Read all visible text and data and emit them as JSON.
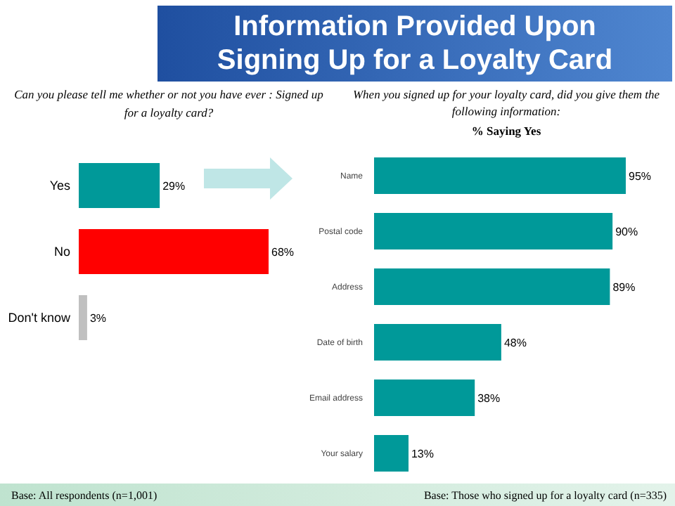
{
  "chart_data": [
    {
      "type": "bar",
      "orientation": "horizontal",
      "title": "Information Provided Upon Signing Up for a Loyalty Card",
      "subtitle": "Can you please tell me whether or not you have ever : Signed up for a loyalty card?",
      "categories": [
        "Yes",
        "No",
        "Don't know"
      ],
      "values": [
        29,
        68,
        3
      ],
      "colors": [
        "#009999",
        "#ff0000",
        "#c0c0c0"
      ],
      "value_labels": [
        "29%",
        "68%",
        "3%"
      ],
      "annotations": [
        "Base: All respondents (n=1,001)"
      ]
    },
    {
      "type": "bar",
      "orientation": "horizontal",
      "title": "When you signed up for your loyalty card, did you give them the following information:",
      "subtitle": "% Saying Yes",
      "categories": [
        "Name",
        "Postal code",
        "Address",
        "Date of birth",
        "Email address",
        "Your salary"
      ],
      "values": [
        95,
        90,
        89,
        48,
        38,
        13
      ],
      "colors": [
        "#009999",
        "#009999",
        "#009999",
        "#009999",
        "#009999",
        "#009999"
      ],
      "value_labels": [
        "95%",
        "90%",
        "89%",
        "48%",
        "38%",
        "13%"
      ],
      "annotations": [
        "Base: Those who signed up for a loyalty card (n=335)"
      ]
    }
  ]
}
